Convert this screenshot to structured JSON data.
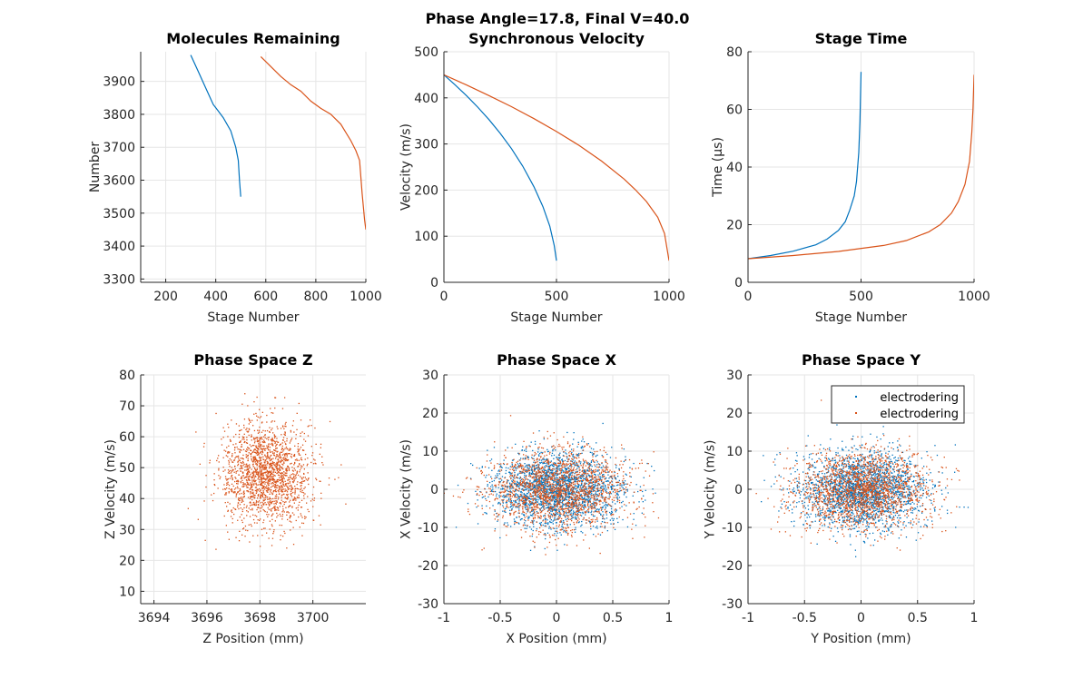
{
  "figure": {
    "suptitle": "Phase Angle=17.8, Final V=40.0",
    "colors": {
      "series1": "#0072BD",
      "series2": "#D95319",
      "grid": "#e6e6e6",
      "axis": "#262626"
    }
  },
  "chart_data": [
    {
      "type": "line",
      "title": "Molecules Remaining",
      "xlabel": "Stage Number",
      "ylabel": "Number",
      "xlim": [
        100,
        1000
      ],
      "ylim": [
        3290,
        3990
      ],
      "xticks": [
        200,
        400,
        600,
        800,
        1000
      ],
      "yticks": [
        3300,
        3400,
        3500,
        3600,
        3700,
        3800,
        3900
      ],
      "grid": true,
      "series": [
        {
          "color": "#0072BD",
          "x": [
            300,
            330,
            360,
            390,
            410,
            430,
            460,
            480,
            490,
            495,
            500
          ],
          "y": [
            3980,
            3930,
            3880,
            3830,
            3810,
            3790,
            3750,
            3700,
            3660,
            3600,
            3550
          ]
        },
        {
          "color": "#D95319",
          "x": [
            580,
            620,
            660,
            700,
            740,
            780,
            820,
            860,
            900,
            940,
            960,
            975,
            985,
            995,
            1000
          ],
          "y": [
            3975,
            3945,
            3915,
            3890,
            3870,
            3840,
            3818,
            3800,
            3770,
            3720,
            3690,
            3660,
            3560,
            3480,
            3450
          ]
        }
      ]
    },
    {
      "type": "line",
      "title": "Synchronous Velocity",
      "xlabel": "Stage Number",
      "ylabel": "Velocity (m/s)",
      "xlim": [
        0,
        1000
      ],
      "ylim": [
        0,
        500
      ],
      "xticks": [
        0,
        500,
        1000
      ],
      "yticks": [
        0,
        100,
        200,
        300,
        400,
        500
      ],
      "grid": true,
      "series": [
        {
          "color": "#0072BD",
          "x": [
            0,
            50,
            100,
            150,
            200,
            250,
            300,
            350,
            400,
            440,
            470,
            490,
            500
          ],
          "y": [
            450,
            428,
            405,
            380,
            353,
            323,
            290,
            252,
            207,
            164,
            122,
            80,
            47
          ]
        },
        {
          "color": "#D95319",
          "x": [
            0,
            100,
            200,
            300,
            400,
            500,
            600,
            700,
            800,
            850,
            900,
            950,
            980,
            1000
          ],
          "y": [
            450,
            428,
            405,
            381,
            355,
            327,
            297,
            263,
            224,
            201,
            175,
            141,
            106,
            47
          ]
        }
      ]
    },
    {
      "type": "line",
      "title": "Stage Time",
      "xlabel": "Stage Number",
      "ylabel": "Time (μs)",
      "xlim": [
        0,
        1000
      ],
      "ylim": [
        0,
        80
      ],
      "xticks": [
        0,
        500,
        1000
      ],
      "yticks": [
        0,
        20,
        40,
        60,
        80
      ],
      "grid": true,
      "series": [
        {
          "color": "#0072BD",
          "x": [
            0,
            100,
            200,
            300,
            350,
            400,
            430,
            450,
            470,
            480,
            490,
            495,
            500
          ],
          "y": [
            8.2,
            9.3,
            10.8,
            13,
            15,
            18,
            21,
            25,
            30,
            35,
            45,
            56,
            73
          ]
        },
        {
          "color": "#D95319",
          "x": [
            0,
            200,
            400,
            600,
            700,
            800,
            850,
            900,
            930,
            960,
            980,
            990,
            995,
            1000
          ],
          "y": [
            8.2,
            9.3,
            10.7,
            12.8,
            14.5,
            17.5,
            20,
            24,
            28,
            34,
            42,
            52,
            60,
            72
          ]
        }
      ]
    },
    {
      "type": "scatter",
      "title": "Phase Space Z",
      "xlabel": "Z Position (mm)",
      "ylabel": "Z Velocity (m/s)",
      "xlim": [
        3693.5,
        3702
      ],
      "ylim": [
        6,
        80
      ],
      "xticks": [
        3694,
        3696,
        3698,
        3700
      ],
      "yticks": [
        10,
        20,
        30,
        40,
        50,
        60,
        70,
        80
      ],
      "grid": true,
      "series": [
        {
          "color": "#D95319",
          "center": [
            3698.2,
            48
          ],
          "spread": [
            0.85,
            8.5
          ],
          "count": 1800
        }
      ]
    },
    {
      "type": "scatter",
      "title": "Phase Space X",
      "xlabel": "X Position (mm)",
      "ylabel": "X Velocity (m/s)",
      "xlim": [
        -1,
        1
      ],
      "ylim": [
        -30,
        30
      ],
      "xticks": [
        -1,
        -0.5,
        0,
        0.5,
        1
      ],
      "yticks": [
        -30,
        -20,
        -10,
        0,
        10,
        20,
        30
      ],
      "grid": true,
      "series": [
        {
          "color": "#0072BD",
          "center": [
            0,
            0
          ],
          "spread": [
            0.28,
            5
          ],
          "count": 2200
        },
        {
          "color": "#D95319",
          "center": [
            0,
            0
          ],
          "spread": [
            0.3,
            5.2
          ],
          "count": 1800
        }
      ]
    },
    {
      "type": "scatter",
      "title": "Phase Space Y",
      "xlabel": "Y Position (mm)",
      "ylabel": "Y Velocity (m/s)",
      "xlim": [
        -1,
        1
      ],
      "ylim": [
        -30,
        30
      ],
      "xticks": [
        -1,
        -0.5,
        0,
        0.5,
        1
      ],
      "yticks": [
        -30,
        -20,
        -10,
        0,
        10,
        20,
        30
      ],
      "grid": true,
      "legend": {
        "placement": "top-right",
        "entries": [
          "electrodering",
          "electrodering"
        ]
      },
      "series": [
        {
          "color": "#0072BD",
          "name": "electrodering",
          "center": [
            0,
            0
          ],
          "spread": [
            0.28,
            5
          ],
          "count": 2200
        },
        {
          "color": "#D95319",
          "name": "electrodering",
          "center": [
            0,
            0
          ],
          "spread": [
            0.3,
            5.2
          ],
          "count": 1800
        }
      ]
    }
  ]
}
